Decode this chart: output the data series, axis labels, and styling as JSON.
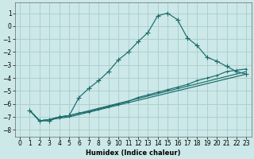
{
  "xlabel": "Humidex (Indice chaleur)",
  "xlim": [
    -0.5,
    23.5
  ],
  "ylim": [
    -8.5,
    1.8
  ],
  "xticks": [
    0,
    1,
    2,
    3,
    4,
    5,
    6,
    7,
    8,
    9,
    10,
    11,
    12,
    13,
    14,
    15,
    16,
    17,
    18,
    19,
    20,
    21,
    22,
    23
  ],
  "yticks": [
    -8,
    -7,
    -6,
    -5,
    -4,
    -3,
    -2,
    -1,
    0,
    1
  ],
  "background_color": "#cce8e8",
  "grid_color": "#aacccc",
  "line_color": "#1a6b6b",
  "line1_x": [
    1,
    2,
    3,
    4,
    5,
    6,
    7,
    8,
    9,
    10,
    11,
    12,
    13,
    14,
    15,
    16,
    17,
    18,
    19,
    20,
    21,
    22,
    23
  ],
  "line1_y": [
    -6.5,
    -7.3,
    -7.3,
    -7.0,
    -6.9,
    -5.5,
    -4.8,
    -4.2,
    -3.5,
    -2.6,
    -2.0,
    -1.2,
    -0.5,
    0.8,
    1.0,
    0.5,
    -0.9,
    -1.5,
    -2.4,
    -2.7,
    -3.1,
    -3.5,
    -3.7
  ],
  "line2_x": [
    1,
    2,
    3,
    4,
    5,
    6,
    7,
    8,
    9,
    10,
    11,
    12,
    13,
    14,
    15,
    16,
    17,
    18,
    19,
    20,
    21,
    22,
    23
  ],
  "line2_y": [
    -6.5,
    -7.3,
    -7.2,
    -7.0,
    -6.9,
    -6.7,
    -6.6,
    -6.4,
    -6.2,
    -6.0,
    -5.8,
    -5.5,
    -5.3,
    -5.1,
    -4.9,
    -4.7,
    -4.5,
    -4.2,
    -4.0,
    -3.8,
    -3.5,
    -3.4,
    -3.3
  ],
  "line3_x": [
    1,
    2,
    3,
    4,
    5,
    23
  ],
  "line3_y": [
    -6.5,
    -7.3,
    -7.2,
    -7.0,
    -6.9,
    -3.5
  ],
  "line4_x": [
    1,
    2,
    3,
    4,
    5,
    23
  ],
  "line4_y": [
    -6.5,
    -7.3,
    -7.2,
    -7.1,
    -7.0,
    -3.7
  ]
}
